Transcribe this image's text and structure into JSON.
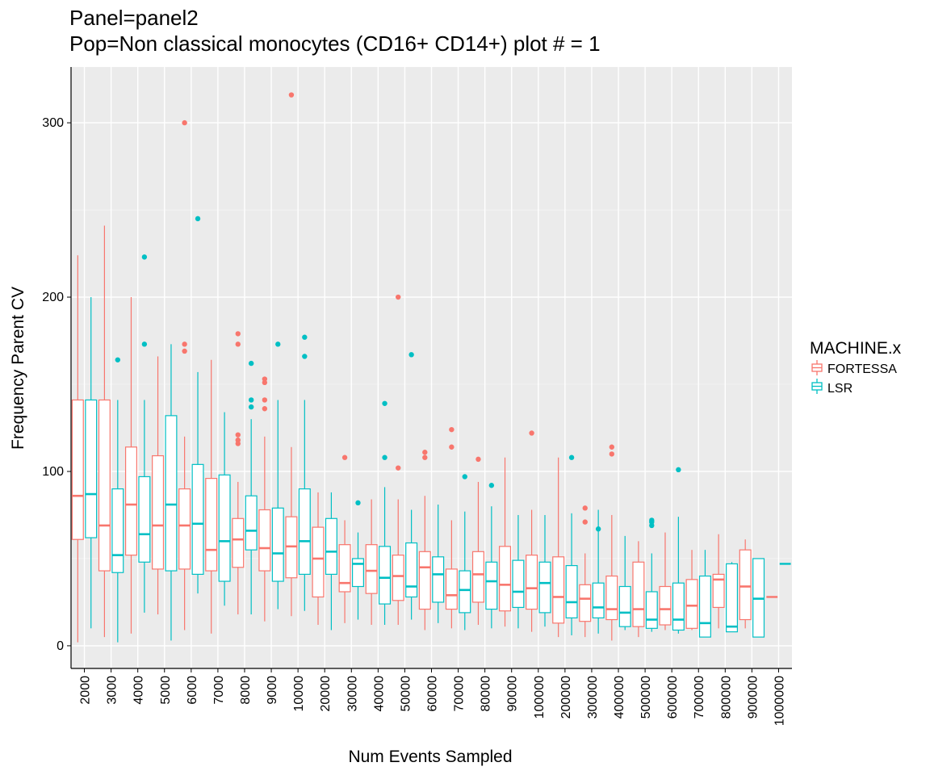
{
  "chart_data": {
    "type": "boxplot",
    "title_lines": [
      "Panel=panel2",
      "Pop=Non classical monocytes (CD16+ CD14+) plot # = 1"
    ],
    "xlabel": "Num Events Sampled",
    "ylabel": "Frequency Parent CV",
    "ylim": [
      -13,
      332
    ],
    "yticks": [
      0,
      100,
      200,
      300
    ],
    "grid": true,
    "legend": {
      "title": "MACHINE.x",
      "position": "right",
      "entries": [
        {
          "name": "FORTESSA",
          "color": "#F8766D"
        },
        {
          "name": "LSR",
          "color": "#00BFC4"
        }
      ]
    },
    "categories": [
      "2000",
      "3000",
      "4000",
      "5000",
      "6000",
      "7000",
      "8000",
      "9000",
      "10000",
      "20000",
      "30000",
      "40000",
      "50000",
      "60000",
      "70000",
      "80000",
      "90000",
      "100000",
      "200000",
      "300000",
      "400000",
      "500000",
      "600000",
      "700000",
      "800000",
      "900000",
      "1000000"
    ],
    "series": [
      {
        "name": "FORTESSA",
        "color": "#F8766D",
        "boxes": [
          {
            "category": "2000",
            "min": 2,
            "q1": 61,
            "median": 86,
            "q3": 141,
            "max": 224,
            "outliers": []
          },
          {
            "category": "3000",
            "min": 5,
            "q1": 43,
            "median": 69,
            "q3": 141,
            "max": 241,
            "outliers": []
          },
          {
            "category": "4000",
            "min": 7,
            "q1": 52,
            "median": 81,
            "q3": 114,
            "max": 200,
            "outliers": []
          },
          {
            "category": "5000",
            "min": 18,
            "q1": 44,
            "median": 69,
            "q3": 109,
            "max": 166,
            "outliers": []
          },
          {
            "category": "6000",
            "min": 9,
            "q1": 44,
            "median": 69,
            "q3": 90,
            "max": 120,
            "outliers": [
              300,
              173,
              169
            ]
          },
          {
            "category": "7000",
            "min": 7,
            "q1": 43,
            "median": 55,
            "q3": 96,
            "max": 164,
            "outliers": []
          },
          {
            "category": "8000",
            "min": 18,
            "q1": 45,
            "median": 61,
            "q3": 73,
            "max": 94,
            "outliers": [
              179,
              173,
              121,
              118,
              116
            ]
          },
          {
            "category": "9000",
            "min": 14,
            "q1": 43,
            "median": 56,
            "q3": 78,
            "max": 120,
            "outliers": [
              153,
              151,
              141,
              136
            ]
          },
          {
            "category": "10000",
            "min": 17,
            "q1": 39,
            "median": 57,
            "q3": 74,
            "max": 114,
            "outliers": [
              316
            ]
          },
          {
            "category": "20000",
            "min": 12,
            "q1": 28,
            "median": 50,
            "q3": 68,
            "max": 88,
            "outliers": []
          },
          {
            "category": "30000",
            "min": 13,
            "q1": 31,
            "median": 36,
            "q3": 58,
            "max": 72,
            "outliers": [
              108
            ]
          },
          {
            "category": "40000",
            "min": 12,
            "q1": 30,
            "median": 43,
            "q3": 58,
            "max": 84,
            "outliers": []
          },
          {
            "category": "50000",
            "min": 12,
            "q1": 26,
            "median": 40,
            "q3": 52,
            "max": 84,
            "outliers": [
              200,
              102
            ]
          },
          {
            "category": "60000",
            "min": 9,
            "q1": 21,
            "median": 45,
            "q3": 54,
            "max": 86,
            "outliers": [
              111,
              108
            ]
          },
          {
            "category": "70000",
            "min": 10,
            "q1": 21,
            "median": 29,
            "q3": 44,
            "max": 72,
            "outliers": [
              124,
              114
            ]
          },
          {
            "category": "80000",
            "min": 12,
            "q1": 25,
            "median": 41,
            "q3": 54,
            "max": 94,
            "outliers": [
              107
            ]
          },
          {
            "category": "90000",
            "min": 11,
            "q1": 20,
            "median": 35,
            "q3": 57,
            "max": 108,
            "outliers": []
          },
          {
            "category": "100000",
            "min": 8,
            "q1": 21,
            "median": 33,
            "q3": 52,
            "max": 78,
            "outliers": [
              122
            ]
          },
          {
            "category": "200000",
            "min": 5,
            "q1": 13,
            "median": 28,
            "q3": 51,
            "max": 108,
            "outliers": []
          },
          {
            "category": "300000",
            "min": 5,
            "q1": 14,
            "median": 27,
            "q3": 35,
            "max": 53,
            "outliers": [
              79,
              71
            ]
          },
          {
            "category": "400000",
            "min": 3,
            "q1": 15,
            "median": 21,
            "q3": 40,
            "max": 75,
            "outliers": [
              114,
              110
            ]
          },
          {
            "category": "500000",
            "min": 5,
            "q1": 11,
            "median": 21,
            "q3": 48,
            "max": 60,
            "outliers": []
          },
          {
            "category": "600000",
            "min": 9,
            "q1": 12,
            "median": 21,
            "q3": 34,
            "max": 65,
            "outliers": []
          },
          {
            "category": "700000",
            "min": 9,
            "q1": 10,
            "median": 23,
            "q3": 38,
            "max": 55,
            "outliers": []
          },
          {
            "category": "800000",
            "min": 10,
            "q1": 22,
            "median": 38,
            "q3": 41,
            "max": 64,
            "outliers": []
          },
          {
            "category": "900000",
            "min": 10,
            "q1": 15,
            "median": 34,
            "q3": 55,
            "max": 61,
            "outliers": []
          },
          {
            "category": "1000000",
            "min": 28,
            "q1": 28,
            "median": 28,
            "q3": 28,
            "max": 28,
            "outliers": []
          }
        ]
      },
      {
        "name": "LSR",
        "color": "#00BFC4",
        "boxes": [
          {
            "category": "2000",
            "min": 10,
            "q1": 62,
            "median": 87,
            "q3": 141,
            "max": 200,
            "outliers": []
          },
          {
            "category": "3000",
            "min": 2,
            "q1": 42,
            "median": 52,
            "q3": 90,
            "max": 141,
            "outliers": [
              164
            ]
          },
          {
            "category": "4000",
            "min": 19,
            "q1": 48,
            "median": 64,
            "q3": 97,
            "max": 141,
            "outliers": [
              223,
              173
            ]
          },
          {
            "category": "5000",
            "min": 3,
            "q1": 43,
            "median": 81,
            "q3": 132,
            "max": 173,
            "outliers": []
          },
          {
            "category": "6000",
            "min": 30,
            "q1": 41,
            "median": 70,
            "q3": 104,
            "max": 157,
            "outliers": [
              245
            ]
          },
          {
            "category": "7000",
            "min": 23,
            "q1": 37,
            "median": 60,
            "q3": 98,
            "max": 134,
            "outliers": []
          },
          {
            "category": "8000",
            "min": 18,
            "q1": 55,
            "median": 66,
            "q3": 86,
            "max": 130,
            "outliers": [
              162,
              141,
              137
            ]
          },
          {
            "category": "9000",
            "min": 21,
            "q1": 37,
            "median": 53,
            "q3": 79,
            "max": 141,
            "outliers": [
              173
            ]
          },
          {
            "category": "10000",
            "min": 20,
            "q1": 41,
            "median": 60,
            "q3": 90,
            "max": 141,
            "outliers": [
              177,
              166
            ]
          },
          {
            "category": "20000",
            "min": 9,
            "q1": 41,
            "median": 54,
            "q3": 73,
            "max": 88,
            "outliers": []
          },
          {
            "category": "30000",
            "min": 15,
            "q1": 34,
            "median": 47,
            "q3": 50,
            "max": 65,
            "outliers": [
              82
            ]
          },
          {
            "category": "40000",
            "min": 12,
            "q1": 24,
            "median": 39,
            "q3": 57,
            "max": 91,
            "outliers": [
              139,
              108
            ]
          },
          {
            "category": "50000",
            "min": 15,
            "q1": 28,
            "median": 34,
            "q3": 59,
            "max": 78,
            "outliers": [
              167
            ]
          },
          {
            "category": "60000",
            "min": 13,
            "q1": 25,
            "median": 41,
            "q3": 51,
            "max": 81,
            "outliers": []
          },
          {
            "category": "70000",
            "min": 9,
            "q1": 19,
            "median": 32,
            "q3": 43,
            "max": 77,
            "outliers": [
              97
            ]
          },
          {
            "category": "80000",
            "min": 10,
            "q1": 21,
            "median": 37,
            "q3": 48,
            "max": 80,
            "outliers": [
              92
            ]
          },
          {
            "category": "90000",
            "min": 10,
            "q1": 22,
            "median": 31,
            "q3": 49,
            "max": 75,
            "outliers": []
          },
          {
            "category": "100000",
            "min": 11,
            "q1": 19,
            "median": 36,
            "q3": 48,
            "max": 75,
            "outliers": []
          },
          {
            "category": "200000",
            "min": 6,
            "q1": 16,
            "median": 25,
            "q3": 46,
            "max": 76,
            "outliers": [
              108
            ]
          },
          {
            "category": "300000",
            "min": 7,
            "q1": 16,
            "median": 22,
            "q3": 36,
            "max": 78,
            "outliers": [
              67
            ]
          },
          {
            "category": "400000",
            "min": 9,
            "q1": 11,
            "median": 19,
            "q3": 34,
            "max": 63,
            "outliers": []
          },
          {
            "category": "500000",
            "min": 8,
            "q1": 10,
            "median": 15,
            "q3": 31,
            "max": 53,
            "outliers": [
              72,
              71,
              69
            ]
          },
          {
            "category": "600000",
            "min": 7,
            "q1": 9,
            "median": 15,
            "q3": 36,
            "max": 74,
            "outliers": [
              101
            ]
          },
          {
            "category": "700000",
            "min": 5,
            "q1": 5,
            "median": 13,
            "q3": 40,
            "max": 55,
            "outliers": []
          },
          {
            "category": "800000",
            "min": 8,
            "q1": 8,
            "median": 11,
            "q3": 47,
            "max": 48,
            "outliers": []
          },
          {
            "category": "900000",
            "min": 5,
            "q1": 5,
            "median": 27,
            "q3": 50,
            "max": 50,
            "outliers": []
          },
          {
            "category": "1000000",
            "min": 47,
            "q1": 47,
            "median": 47,
            "q3": 47,
            "max": 47,
            "outliers": []
          }
        ]
      }
    ]
  }
}
